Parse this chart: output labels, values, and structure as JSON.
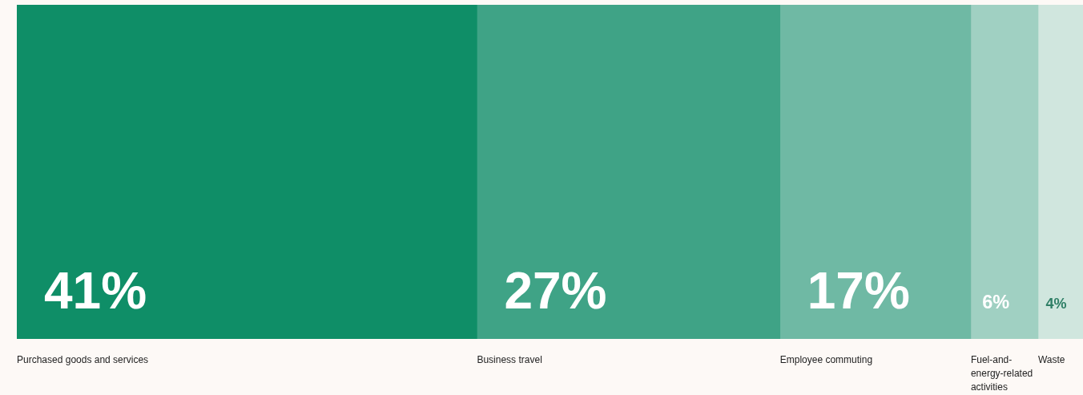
{
  "chart_data": {
    "type": "bar",
    "orientation": "horizontal",
    "stacked": true,
    "categories": [
      null
    ],
    "series": [
      {
        "name": "Purchased goods and services",
        "color": "#0f8e67",
        "values": [
          41
        ],
        "value_labels": [
          "41%"
        ]
      },
      {
        "name": "Business travel",
        "color": "#3fa386",
        "values": [
          27
        ],
        "value_labels": [
          "27%"
        ]
      },
      {
        "name": "Employee commuting",
        "color": "#6fb9a4",
        "values": [
          17
        ],
        "value_labels": [
          "17%"
        ]
      },
      {
        "name": "Fuel-and-energy-related activities",
        "color": "#a0d0c2",
        "values": [
          6
        ],
        "value_labels": [
          "6%"
        ]
      },
      {
        "name": "Waste",
        "color": "#d0e6de",
        "values": [
          4
        ],
        "value_labels": [
          "4%"
        ]
      }
    ]
  }
}
